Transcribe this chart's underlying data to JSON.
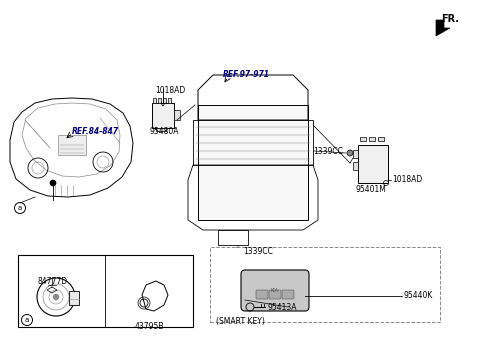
{
  "bg_color": "#ffffff",
  "line_color": "#000000",
  "dark_gray": "#555555",
  "med_gray": "#888888",
  "light_gray": "#cccccc",
  "fr_text": "FR.",
  "labels": {
    "1018AD_top": "1018AD",
    "95480A": "95480A",
    "ref_84_847": "REF.84-847",
    "ref_97_971": "REF.97-971",
    "1339CC_bottom": "1339CC",
    "1339CC_right": "1339CC",
    "95401M": "95401M",
    "1018AD_right": "1018AD",
    "43795B": "43795B",
    "84777D": "84777D",
    "smart_key": "(SMART KEY)",
    "95440K": "95440K",
    "95413A": "95413A"
  },
  "circle_a_label": "a",
  "box_a_label": "a"
}
